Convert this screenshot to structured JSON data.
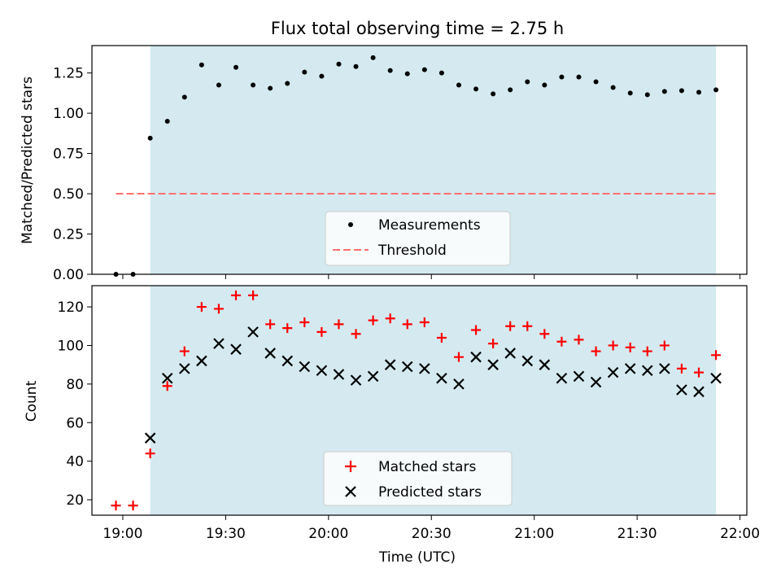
{
  "figure_title": "Flux total observing time = 2.75 h",
  "colors": {
    "band": "#d4eaf0",
    "measurement": "#000000",
    "threshold": "#ff7070",
    "matched": "#ff0000",
    "predicted": "#000000"
  },
  "chart_data": [
    {
      "type": "scatter",
      "title": "Flux total observing time = 2.75 h",
      "xlabel": "",
      "ylabel": "Matched/Predicted stars",
      "xlim": [
        "18:51",
        "22:02"
      ],
      "ylim": [
        0,
        1.42
      ],
      "yticks": [
        "0.00",
        "0.25",
        "0.50",
        "0.75",
        "1.00",
        "1.25"
      ],
      "shaded_interval": [
        "19:08",
        "21:53"
      ],
      "legend_position": "lower-center",
      "x": [
        "18:58",
        "19:03",
        "19:08",
        "19:13",
        "19:18",
        "19:23",
        "19:28",
        "19:33",
        "19:38",
        "19:43",
        "19:48",
        "19:53",
        "19:58",
        "20:03",
        "20:08",
        "20:13",
        "20:18",
        "20:23",
        "20:28",
        "20:33",
        "20:38",
        "20:43",
        "20:48",
        "20:53",
        "20:58",
        "21:03",
        "21:08",
        "21:13",
        "21:18",
        "21:23",
        "21:28",
        "21:33",
        "21:38",
        "21:43",
        "21:48",
        "21:53"
      ],
      "series": [
        {
          "name": "Measurements",
          "values": [
            0.0,
            0.0,
            0.845,
            0.95,
            1.1,
            1.3,
            1.175,
            1.285,
            1.175,
            1.155,
            1.185,
            1.255,
            1.23,
            1.305,
            1.29,
            1.345,
            1.265,
            1.245,
            1.27,
            1.25,
            1.175,
            1.15,
            1.12,
            1.145,
            1.195,
            1.175,
            1.225,
            1.225,
            1.195,
            1.16,
            1.125,
            1.115,
            1.135,
            1.14,
            1.13,
            1.145
          ]
        },
        {
          "name": "Threshold",
          "x": [
            "18:58",
            "21:53"
          ],
          "values": [
            0.5,
            0.5
          ]
        }
      ]
    },
    {
      "type": "scatter",
      "title": "",
      "xlabel": "Time (UTC)",
      "ylabel": "Count",
      "xlim": [
        "18:51",
        "22:02"
      ],
      "ylim": [
        12,
        131
      ],
      "yticks": [
        "20",
        "40",
        "60",
        "80",
        "100",
        "120"
      ],
      "xticks": [
        "19:00",
        "19:30",
        "20:00",
        "20:30",
        "21:00",
        "21:30",
        "22:00"
      ],
      "shaded_interval": [
        "19:08",
        "21:53"
      ],
      "legend_position": "lower-center",
      "x": [
        "18:58",
        "19:03",
        "19:08",
        "19:13",
        "19:18",
        "19:23",
        "19:28",
        "19:33",
        "19:38",
        "19:43",
        "19:48",
        "19:53",
        "19:58",
        "20:03",
        "20:08",
        "20:13",
        "20:18",
        "20:23",
        "20:28",
        "20:33",
        "20:38",
        "20:43",
        "20:48",
        "20:53",
        "20:58",
        "21:03",
        "21:08",
        "21:13",
        "21:18",
        "21:23",
        "21:28",
        "21:33",
        "21:38",
        "21:43",
        "21:48",
        "21:53"
      ],
      "series": [
        {
          "name": "Matched stars",
          "values": [
            17,
            17,
            44,
            79,
            97,
            120,
            119,
            126,
            126,
            111,
            109,
            112,
            107,
            111,
            106,
            113,
            114,
            111,
            112,
            104,
            94,
            108,
            101,
            110,
            110,
            106,
            102,
            103,
            97,
            100,
            99,
            97,
            100,
            88,
            86,
            95
          ]
        },
        {
          "name": "Predicted stars",
          "x": [
            "19:08",
            "19:13",
            "19:18",
            "19:23",
            "19:28",
            "19:33",
            "19:38",
            "19:43",
            "19:48",
            "19:53",
            "19:58",
            "20:03",
            "20:08",
            "20:13",
            "20:18",
            "20:23",
            "20:28",
            "20:33",
            "20:38",
            "20:43",
            "20:48",
            "20:53",
            "20:58",
            "21:03",
            "21:08",
            "21:13",
            "21:18",
            "21:23",
            "21:28",
            "21:33",
            "21:38",
            "21:43",
            "21:48",
            "21:53"
          ],
          "values": [
            52,
            83,
            88,
            92,
            101,
            98,
            107,
            96,
            92,
            89,
            87,
            85,
            82,
            84,
            90,
            89,
            88,
            83,
            80,
            94,
            90,
            96,
            92,
            90,
            83,
            84,
            81,
            86,
            88,
            87,
            88,
            77,
            76,
            83
          ]
        }
      ]
    }
  ]
}
